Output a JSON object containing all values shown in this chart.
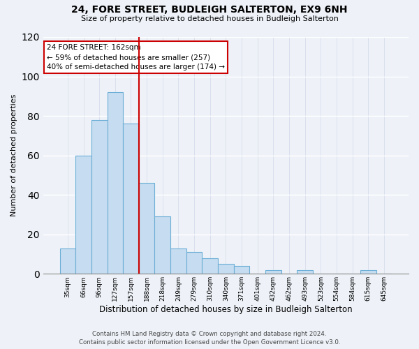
{
  "title1": "24, FORE STREET, BUDLEIGH SALTERTON, EX9 6NH",
  "title2": "Size of property relative to detached houses in Budleigh Salterton",
  "xlabel": "Distribution of detached houses by size in Budleigh Salterton",
  "ylabel": "Number of detached properties",
  "bar_labels": [
    "35sqm",
    "66sqm",
    "96sqm",
    "127sqm",
    "157sqm",
    "188sqm",
    "218sqm",
    "249sqm",
    "279sqm",
    "310sqm",
    "340sqm",
    "371sqm",
    "401sqm",
    "432sqm",
    "462sqm",
    "493sqm",
    "523sqm",
    "554sqm",
    "584sqm",
    "615sqm",
    "645sqm"
  ],
  "bar_values": [
    13,
    60,
    78,
    92,
    76,
    46,
    29,
    13,
    11,
    8,
    5,
    4,
    0,
    2,
    0,
    2,
    0,
    0,
    0,
    2,
    0
  ],
  "bar_color": "#c6dcf0",
  "bar_edge_color": "#6baed6",
  "vline_color": "#cc0000",
  "annotation_title": "24 FORE STREET: 162sqm",
  "annotation_line1": "← 59% of detached houses are smaller (257)",
  "annotation_line2": "40% of semi-detached houses are larger (174) →",
  "annotation_box_color": "white",
  "annotation_box_edge": "#cc0000",
  "ylim": [
    0,
    120
  ],
  "yticks": [
    0,
    20,
    40,
    60,
    80,
    100,
    120
  ],
  "footnote1": "Contains HM Land Registry data © Crown copyright and database right 2024.",
  "footnote2": "Contains public sector information licensed under the Open Government Licence v3.0.",
  "background_color": "#eef2f8"
}
